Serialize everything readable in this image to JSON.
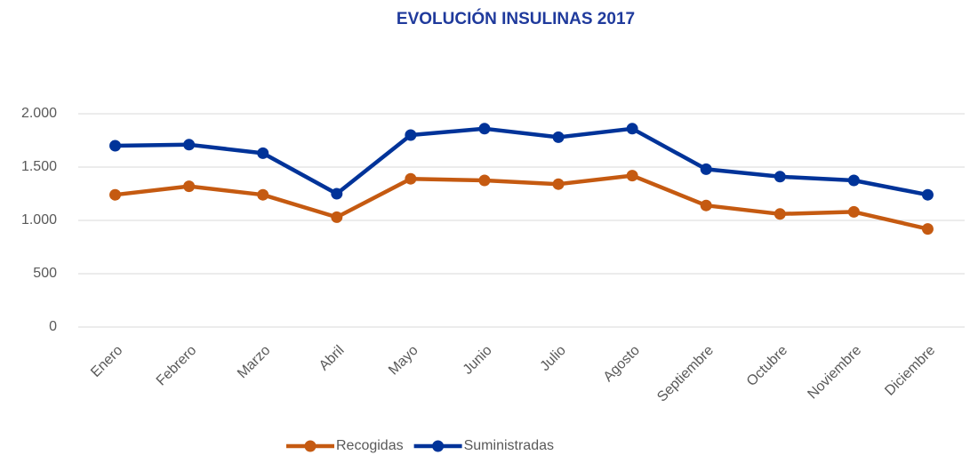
{
  "chart_data": {
    "type": "line",
    "title": "EVOLUCIÓN INSULINAS 2017",
    "categories": [
      "Enero",
      "Febrero",
      "Marzo",
      "Abril",
      "Mayo",
      "Junio",
      "Julio",
      "Agosto",
      "Septiembre",
      "Octubre",
      "Noviembre",
      "Diciembre"
    ],
    "series": [
      {
        "name": "Recogidas",
        "color": "#c55a11",
        "values": [
          1240,
          1320,
          1240,
          1030,
          1390,
          1375,
          1340,
          1420,
          1140,
          1060,
          1080,
          920
        ]
      },
      {
        "name": "Suministradas",
        "color": "#003399",
        "values": [
          1700,
          1710,
          1630,
          1250,
          1800,
          1860,
          1780,
          1860,
          1480,
          1410,
          1375,
          1240
        ]
      }
    ],
    "ylim": [
      0,
      2000
    ],
    "yticks": [
      0,
      500,
      {
        "value": 1000,
        "label": "1.000"
      },
      {
        "value": 1500,
        "label": "1.500"
      },
      {
        "value": 2000,
        "label": "2.000"
      }
    ],
    "grid": true,
    "legend": "bottom"
  }
}
